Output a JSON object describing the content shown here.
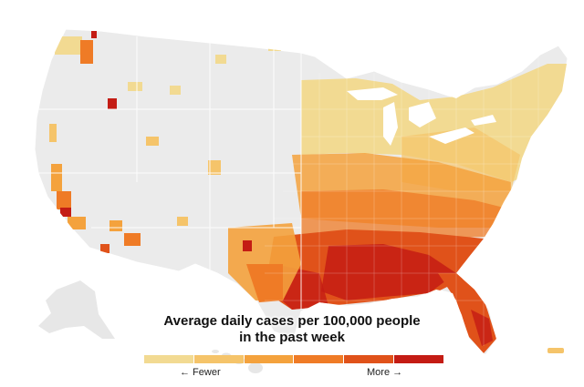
{
  "map": {
    "region": "United States counties",
    "background_color": "#ebebeb",
    "no_data_color": "#ebebeb"
  },
  "legend": {
    "title_line1": "Average daily cases per 100,000 people",
    "title_line2": "in the past week",
    "fewer_label": "← Fewer",
    "more_label": "More →",
    "colors": [
      "#f2da92",
      "#f5c46a",
      "#f4a23d",
      "#ef7b26",
      "#e0521a",
      "#c41c14"
    ]
  }
}
